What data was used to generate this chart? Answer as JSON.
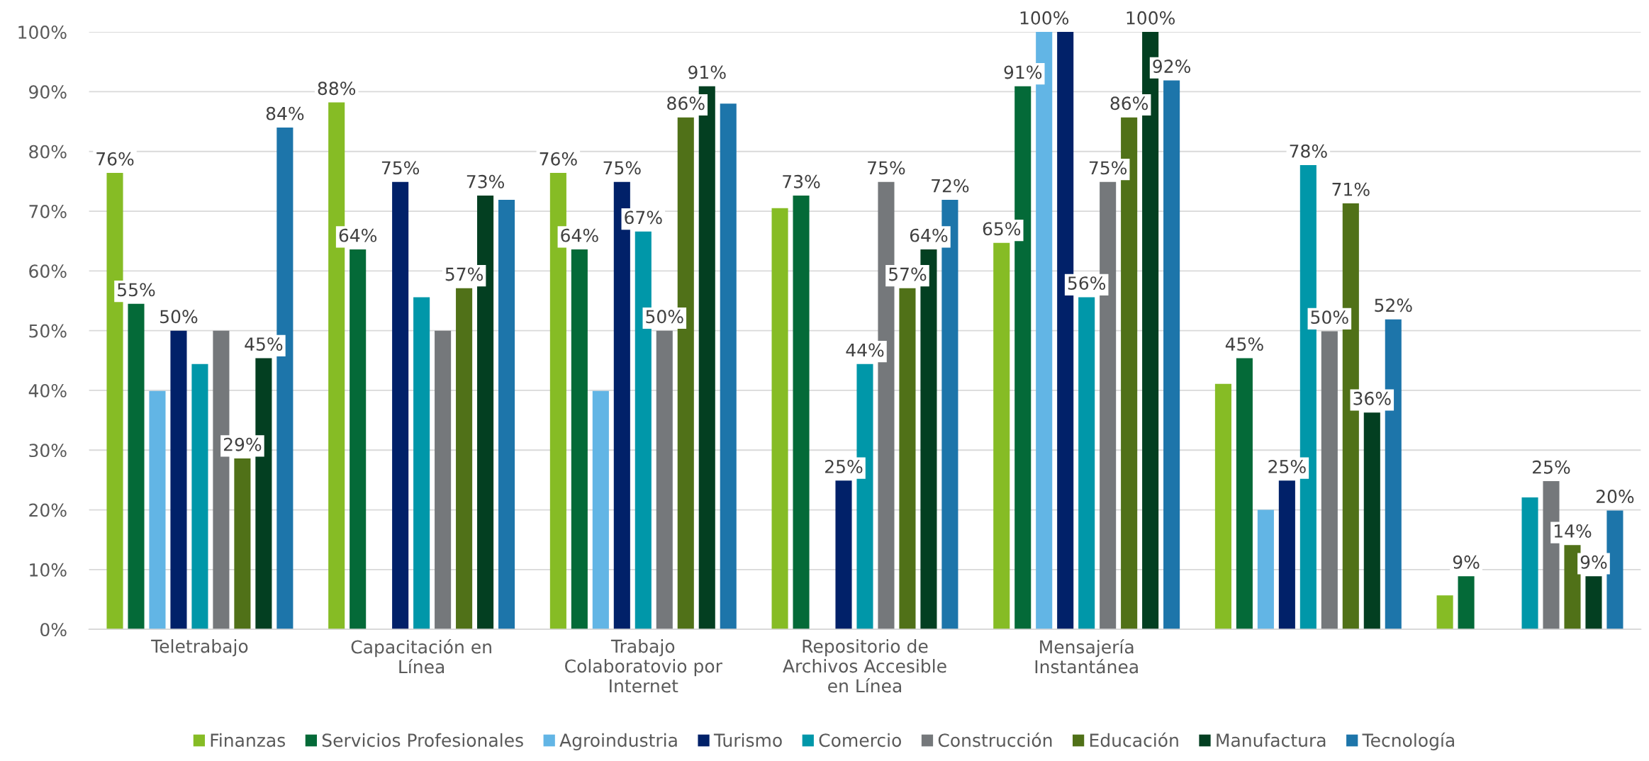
{
  "chart_data": {
    "type": "bar",
    "categories": [
      "Teletrabajo",
      "Capacitación en Línea",
      "Trabajo Colaboratovio por Internet",
      "Repositorio de Archivos Accesible en Línea",
      "Mensajería Instantánea",
      null,
      null
    ],
    "series": [
      {
        "name": "Finanzas",
        "color": "#86bc25",
        "values": [
          76.4,
          88.2,
          76.4,
          70.5,
          64.7,
          41.1,
          5.7
        ],
        "value_labels": [
          "76%",
          "88%",
          "76%",
          null,
          "65%",
          null,
          null
        ]
      },
      {
        "name": "Servicios Profesionales",
        "color": "#046a38",
        "values": [
          54.5,
          63.6,
          63.6,
          72.6,
          90.9,
          45.4,
          8.9
        ],
        "value_labels": [
          "55%",
          "64%",
          "64%",
          "73%",
          "91%",
          "45%",
          "9%"
        ]
      },
      {
        "name": "Agroindustria",
        "color": "#62b5e5",
        "values": [
          39.9,
          null,
          39.9,
          null,
          100,
          20.0,
          null
        ],
        "value_labels": [
          null,
          null,
          null,
          null,
          "100%",
          null,
          null
        ]
      },
      {
        "name": "Turismo",
        "color": "#012169",
        "values": [
          50,
          74.9,
          74.9,
          24.9,
          100,
          24.9,
          null
        ],
        "value_labels": [
          "50%",
          "75%",
          "75%",
          "25%",
          null,
          "25%",
          null
        ]
      },
      {
        "name": "Comercio",
        "color": "#0097a9",
        "values": [
          44.4,
          55.6,
          66.6,
          44.4,
          55.6,
          77.7,
          22.1
        ],
        "value_labels": [
          null,
          null,
          "67%",
          "44%",
          "56%",
          "78%",
          null
        ]
      },
      {
        "name": "Construcción",
        "color": "#75787b",
        "values": [
          50,
          50,
          50,
          74.9,
          74.9,
          49.9,
          24.8
        ],
        "value_labels": [
          null,
          null,
          "50%",
          "75%",
          "75%",
          "50%",
          "25%"
        ]
      },
      {
        "name": "Educación",
        "color": "#507118",
        "values": [
          28.6,
          57.1,
          85.7,
          57.1,
          85.7,
          71.3,
          14.1
        ],
        "value_labels": [
          "29%",
          "57%",
          "86%",
          "57%",
          "86%",
          "71%",
          "14%"
        ]
      },
      {
        "name": "Manufactura",
        "color": "#033f21",
        "values": [
          45.4,
          72.6,
          90.9,
          63.6,
          100,
          36.3,
          8.9
        ],
        "value_labels": [
          "45%",
          "73%",
          "91%",
          "64%",
          "100%",
          "36%",
          "9%"
        ]
      },
      {
        "name": "Tecnología",
        "color": "#1d75aa",
        "values": [
          84.0,
          71.9,
          88.0,
          71.9,
          91.9,
          51.9,
          19.9
        ],
        "value_labels": [
          "84%",
          null,
          null,
          "72%",
          "92%",
          "52%",
          "20%"
        ]
      }
    ],
    "ylim": [
      0,
      100
    ],
    "yticks": [
      {
        "value": 0,
        "label": "0%"
      },
      {
        "value": 10,
        "label": "10%"
      },
      {
        "value": 20,
        "label": "20%"
      },
      {
        "value": 30,
        "label": "30%"
      },
      {
        "value": 40,
        "label": "40%"
      },
      {
        "value": 50,
        "label": "50%"
      },
      {
        "value": 60,
        "label": "60%"
      },
      {
        "value": 70,
        "label": "70%"
      },
      {
        "value": 80,
        "label": "80%"
      },
      {
        "value": 90,
        "label": "90%"
      },
      {
        "value": 100,
        "label": "100%"
      }
    ],
    "grid": "y",
    "legend": "bottom"
  }
}
